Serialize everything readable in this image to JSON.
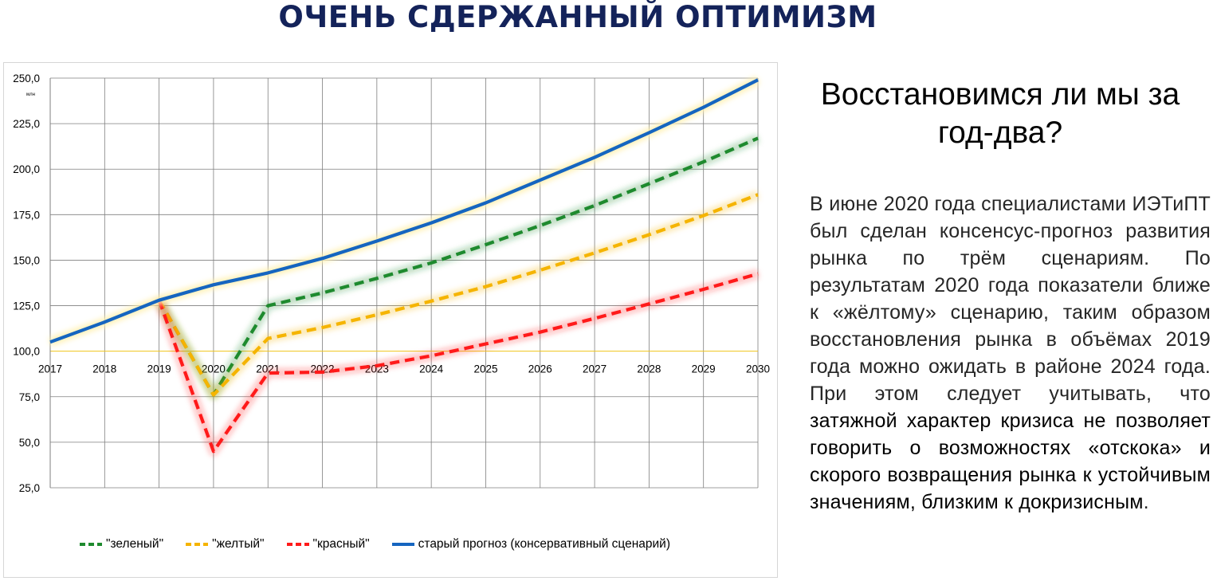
{
  "page": {
    "title": "ОЧЕНЬ СДЕРЖАННЫЙ ОПТИМИЗМ"
  },
  "side": {
    "heading": "Восстановимся ли мы за год-два?",
    "paragraph_plain": "В июне 2020 года специалистами ИЭТиПТ был сделан консенсус-прогноз развития рынка по трём сценариям. По результатам 2020 года показатели ближе к «жёлтому» сценарию, таким образом восстановления рынка в объёмах 2019 года можно ожидать в районе 2024 года. При этом следует учитывать, что ",
    "paragraph_emphasis": "затяжной характер кризиса не позволяет говорить о возможностях «отскока» и скорого возвращения рынка к устойчивым значениям, близким к докризисным",
    "paragraph_end": "."
  },
  "chart_data": {
    "type": "line",
    "title": "",
    "xlabel": "",
    "ylabel": "млн",
    "x": [
      2017,
      2018,
      2019,
      2020,
      2021,
      2022,
      2023,
      2024,
      2025,
      2026,
      2027,
      2028,
      2029,
      2030
    ],
    "tick_labels_x": [
      "2017",
      "2018",
      "2019",
      "2020",
      "2021",
      "2022",
      "2023",
      "2024",
      "2025",
      "2026",
      "2027",
      "2028",
      "2029",
      "2030"
    ],
    "tick_labels_y": [
      "250,0",
      "225,0",
      "200,0",
      "175,0",
      "150,0",
      "125,0",
      "100,0",
      "75,0",
      "50,0",
      "25,0"
    ],
    "ylim": [
      25,
      250
    ],
    "x_axis_crosses_at": 100,
    "grid": true,
    "legend_position": "bottom",
    "series": [
      {
        "name": "\"зеленый\"",
        "style": "dashed",
        "color": "#1e8a2e",
        "x": [
          2019,
          2020,
          2021,
          2022,
          2023,
          2024,
          2025,
          2026,
          2027,
          2028,
          2029,
          2030
        ],
        "values": [
          128,
          76,
          125,
          132,
          140,
          148.5,
          158.5,
          169,
          180,
          192,
          204,
          217
        ]
      },
      {
        "name": "\"желтый\"",
        "style": "dashed",
        "color": "#f5b400",
        "x": [
          2019,
          2020,
          2021,
          2022,
          2023,
          2024,
          2025,
          2026,
          2027,
          2028,
          2029,
          2030
        ],
        "values": [
          128,
          76,
          107,
          113,
          120,
          127.5,
          135.5,
          144.5,
          154,
          164,
          174.5,
          186
        ]
      },
      {
        "name": "\"красный\"",
        "style": "dashed",
        "color": "#ff1a1a",
        "x": [
          2019,
          2020,
          2021,
          2022,
          2023,
          2024,
          2025,
          2026,
          2027,
          2028,
          2029,
          2030
        ],
        "values": [
          128,
          45,
          88,
          88.5,
          92,
          97.5,
          104,
          110.5,
          118,
          126,
          134,
          142.5
        ]
      },
      {
        "name": "старый прогноз (консервативный сценарий)",
        "style": "solid",
        "color": "#1565c0",
        "x": [
          2017,
          2018,
          2019,
          2020,
          2021,
          2022,
          2023,
          2024,
          2025,
          2026,
          2027,
          2028,
          2029,
          2030
        ],
        "values": [
          105,
          116,
          128,
          136.5,
          143,
          151,
          160.5,
          170.5,
          181.5,
          194,
          206.5,
          220,
          234,
          249
        ]
      }
    ]
  }
}
